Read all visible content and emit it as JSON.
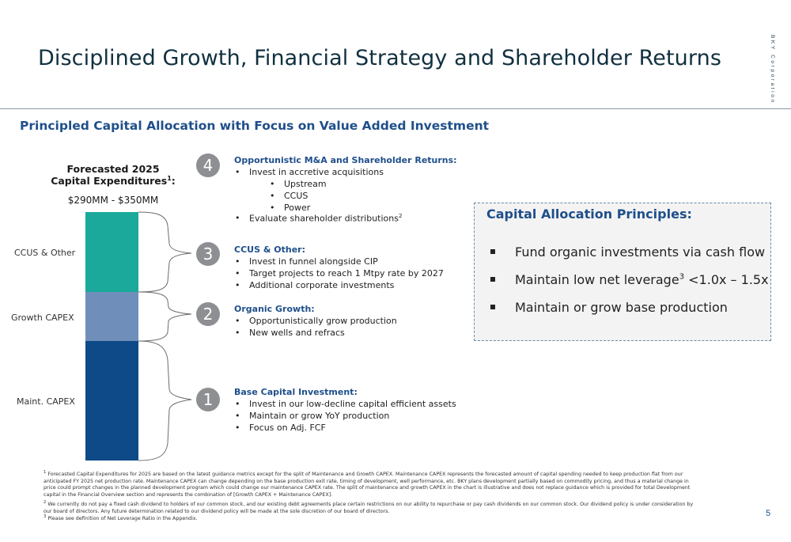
{
  "header": {
    "title": "Disciplined Growth, Financial Strategy and Shareholder Returns",
    "brand": "BKY Corporation"
  },
  "subtitle": "Principled Capital Allocation with Focus on Value Added Investment",
  "forecast": {
    "title_line1": "Forecasted 2025",
    "title_line2": "Capital Expenditures",
    "title_sup": "1",
    "title_colon": ":",
    "range": "$290MM - $350MM",
    "labels": {
      "ccus": "CCUS & Other",
      "growth": "Growth CAPEX",
      "maint": "Maint. CAPEX"
    },
    "colors": {
      "ccus": "#1aa99a",
      "growth": "#6f8fba",
      "maint": "#0d4a87"
    }
  },
  "sections": {
    "s4": {
      "number": "4",
      "heading": "Opportunistic M&A and Shareholder Returns:",
      "bullet1": "Invest in accretive acquisitions",
      "sub1": "Upstream",
      "sub2": "CCUS",
      "sub3": "Power",
      "bullet2": "Evaluate shareholder distributions",
      "bullet2_sup": "2"
    },
    "s3": {
      "number": "3",
      "heading": "CCUS & Other:",
      "bullet1": "Invest in funnel alongside CIP",
      "bullet2": "Target projects to reach 1 Mtpy rate by 2027",
      "bullet3": "Additional corporate investments"
    },
    "s2": {
      "number": "2",
      "heading": "Organic Growth:",
      "bullet1": "Opportunistically grow production",
      "bullet2": "New wells and refracs"
    },
    "s1": {
      "number": "1",
      "heading": "Base Capital Investment:",
      "bullet1": "Invest in our low-decline capital efficient assets",
      "bullet2": "Maintain or grow YoY production",
      "bullet3": "Focus on Adj. FCF"
    }
  },
  "principles": {
    "title": "Capital Allocation Principles:",
    "item1": "Fund organic investments via cash flow",
    "item2_a": "Maintain low net leverage",
    "item2_sup": "3",
    "item2_b": " <1.0x – 1.5x",
    "item3": "Maintain or grow base production"
  },
  "footnotes": {
    "f1_sup": "1",
    "f1": " Forecasted Capital Expenditures for 2025 are based on the latest guidance metrics except for the split of Maintenance and Growth CAPEX. Maintenance CAPEX represents the forecasted amount of capital spending needed to keep production flat from our anticipated FY 2025 net production rate. Maintenance CAPEX can change depending on the base production exit rate, timing of development, well performance, etc. BKY plans development partially based on commodity pricing, and thus a material change in price could prompt changes in the planned development program which could change our maintenance CAPEX rate. The split of maintenance and growth CAPEX in the chart is illustrative and does not replace guidance which is provided for total Development capital in the Financial Overview section and represents the combination of [Growth CAPEX + Maintenance CAPEX].",
    "f2_sup": "2",
    "f2": " We currently do not pay a fixed cash dividend to holders of our common stock, and our existing debt agreements place certain restrictions on our ability to repurchase or pay cash dividends on our common stock. Our dividend policy is under consideration by our board of directors. Any future determination related to our dividend policy will be made at the sole discretion of our board of directors.",
    "f3_sup": "3",
    "f3": " Please see definition of Net Leverage Ratio in the Appendix."
  },
  "page_number": "5"
}
